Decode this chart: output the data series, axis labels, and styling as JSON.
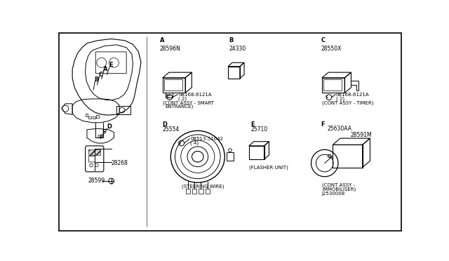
{
  "background_color": "#ffffff",
  "border_color": "#000000",
  "line_color": "#000000",
  "text_color": "#000000",
  "fig_width": 6.4,
  "fig_height": 3.72,
  "dpi": 100,
  "labels": {
    "part_28596N": "28596N",
    "part_08168_A": "08168-6121A",
    "qty_2_A": "( 2)",
    "caption_A1": "(CONT ASSY - SMART",
    "caption_A2": "ENTRANCE)",
    "part_24330": "24330",
    "part_28550X": "28550X",
    "part_08168_C": "08168-6121A",
    "qty_2_C": "( 2)",
    "caption_C": "(CONT ASSY - TIMER)",
    "part_25554": "25554",
    "part_08513": "08513-51642",
    "qty_4": "( 4)",
    "caption_D": "(STEERING WIRE)",
    "part_25710": "25710",
    "caption_E": "(FLASHER UNIT)",
    "part_25630AA": "25630AA",
    "part_28591M": "28591M",
    "caption_F1": "(CONT ASSY -",
    "caption_F2": "IMMOBILISER)",
    "part_J2530008": "J2530008",
    "part_28268": "28268",
    "part_28599": "28599"
  },
  "font_sizes": {
    "section_letter": 6,
    "part_number": 5.5,
    "caption": 5,
    "small": 5
  }
}
